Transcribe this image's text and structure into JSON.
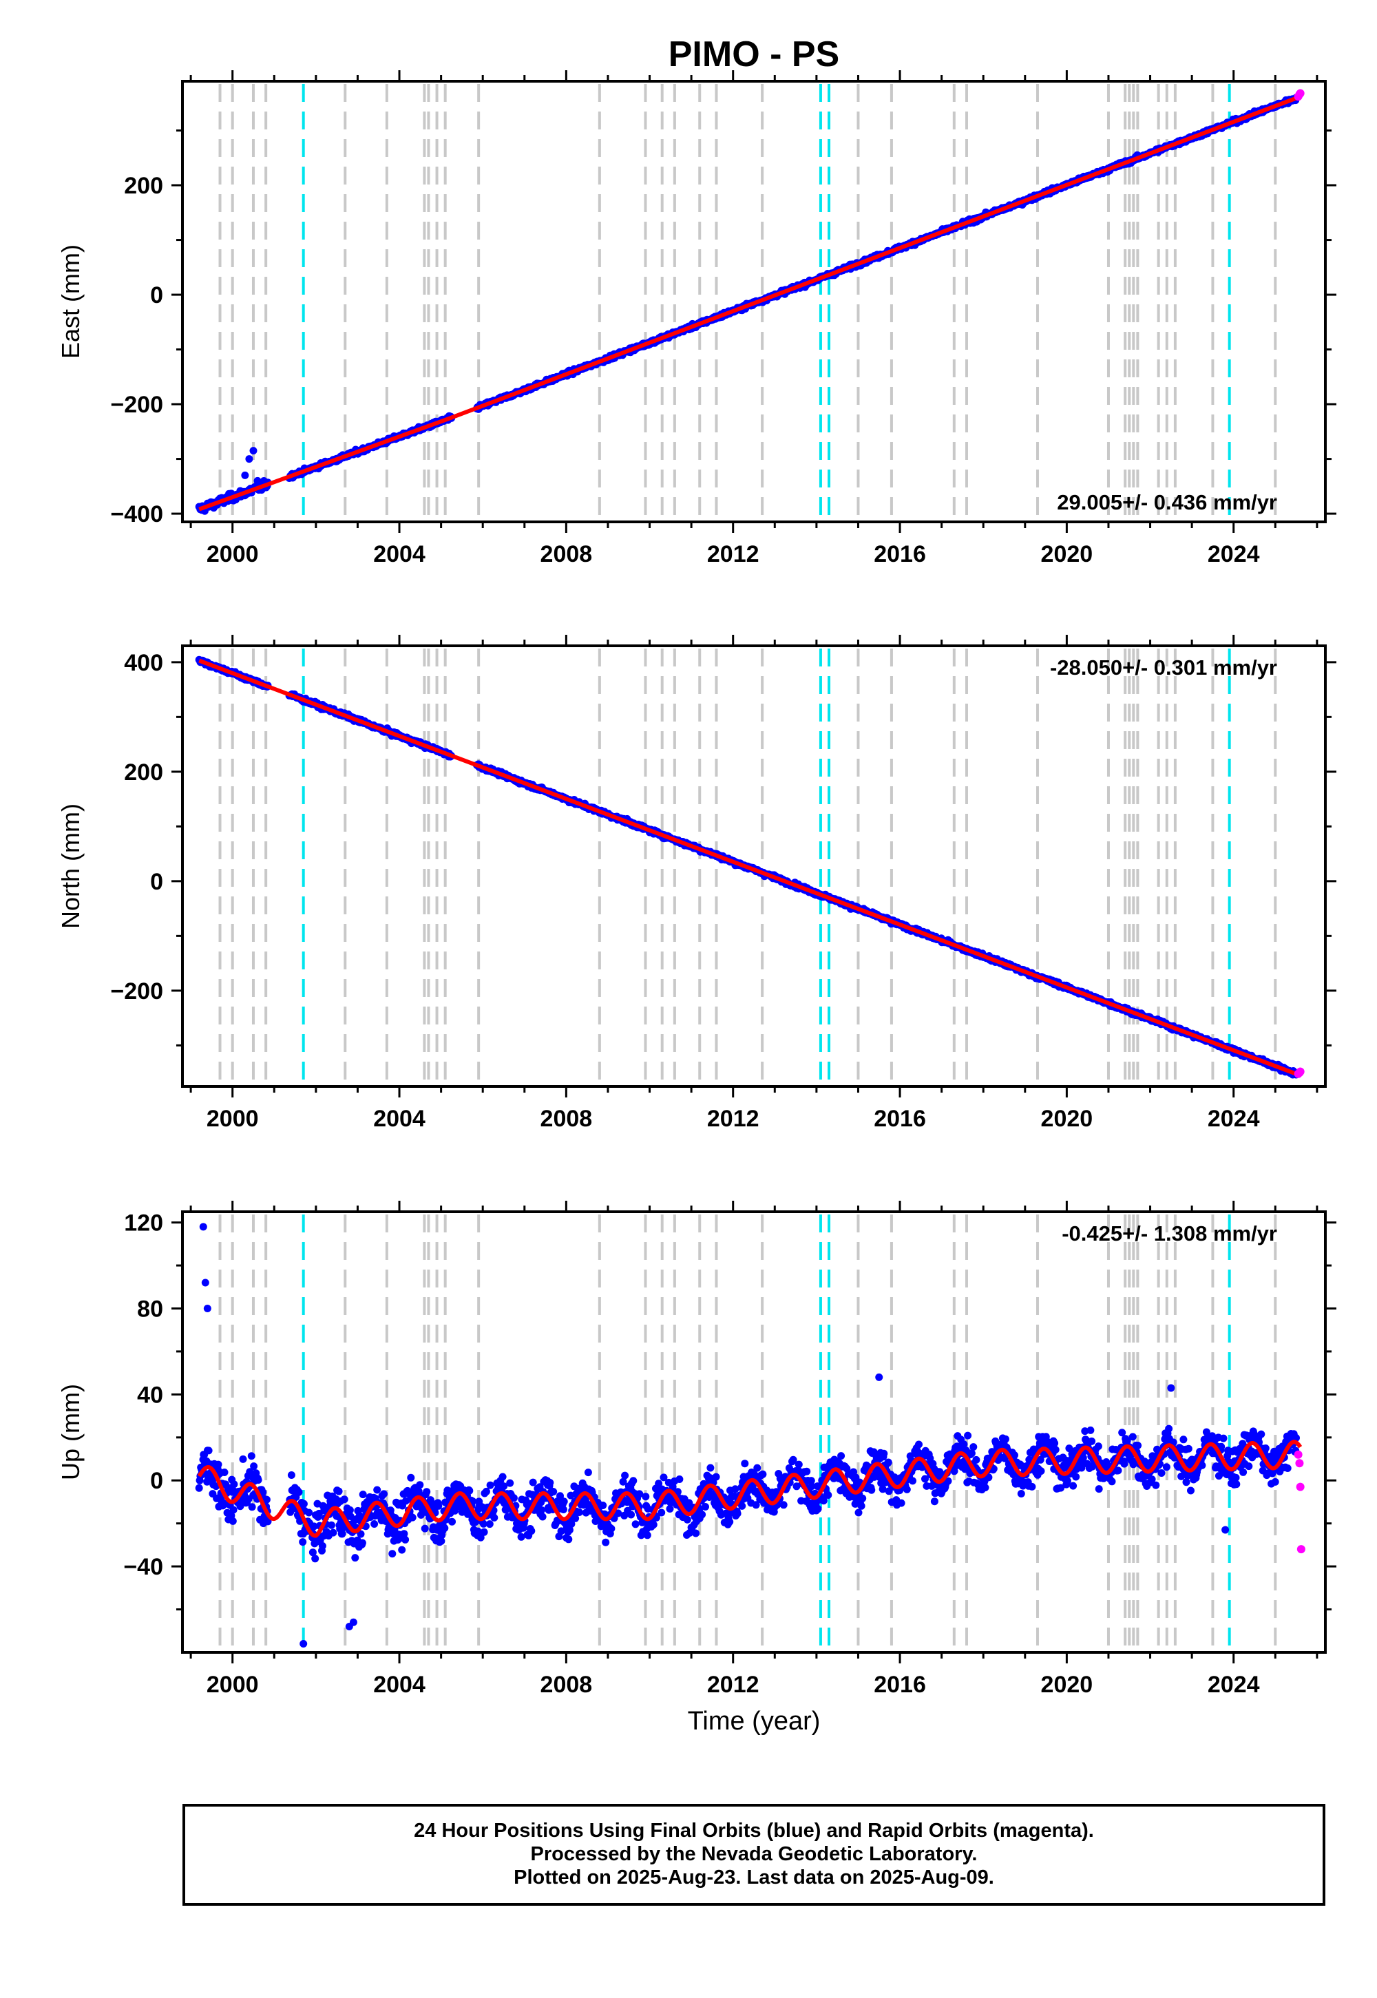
{
  "title": "PIMO - PS",
  "chart_data": [
    {
      "type": "scatter",
      "panel": "east",
      "ylabel": "East (mm)",
      "xlabel": "",
      "xlim": [
        1998.8,
        2026.2
      ],
      "ylim": [
        -415,
        390
      ],
      "xticks": [
        2000,
        2004,
        2008,
        2012,
        2016,
        2020,
        2024
      ],
      "yticks": [
        -400,
        -200,
        0,
        200
      ],
      "rate_label": "29.005+/- 0.436 mm/yr",
      "rate_position": "bottom-right",
      "model_line": {
        "x": [
          1999.2,
          2005.2,
          2025.6
        ],
        "y": [
          -392,
          -226,
          362
        ]
      },
      "final_orbits_range": {
        "x_start": 1999.2,
        "x_end": 2025.5,
        "y_start": -392,
        "y_end": 360
      },
      "rapid_orbits_points": {
        "x": [
          2025.55,
          2025.58,
          2025.6
        ],
        "y": [
          362,
          366,
          368
        ]
      },
      "outliers": {
        "x": [
          2000.3,
          2000.4,
          2000.5,
          2000.6,
          2001.6
        ],
        "y": [
          -330,
          -300,
          -285,
          -340,
          -325
        ]
      }
    },
    {
      "type": "scatter",
      "panel": "north",
      "ylabel": "North (mm)",
      "xlabel": "",
      "xlim": [
        1998.8,
        2026.2
      ],
      "ylim": [
        -375,
        430
      ],
      "xticks": [
        2000,
        2004,
        2008,
        2012,
        2016,
        2020,
        2024
      ],
      "yticks": [
        -200,
        0,
        200,
        400
      ],
      "rate_label": "-28.050+/- 0.301 mm/yr",
      "rate_position": "top-right",
      "model_line": {
        "x": [
          1999.2,
          2025.6
        ],
        "y": [
          403,
          -355
        ]
      },
      "rapid_orbits_points": {
        "x": [
          2025.55,
          2025.58,
          2025.6
        ],
        "y": [
          -352,
          -350,
          -348
        ]
      }
    },
    {
      "type": "scatter",
      "panel": "up",
      "ylabel": "Up (mm)",
      "xlabel": "Time (year)",
      "xlim": [
        1998.8,
        2026.2
      ],
      "ylim": [
        -80,
        125
      ],
      "xticks": [
        2000,
        2004,
        2008,
        2012,
        2016,
        2020,
        2024
      ],
      "yticks": [
        -40,
        0,
        40,
        80,
        120
      ],
      "rate_label": "-0.425+/- 1.308 mm/yr",
      "rate_position": "top-right",
      "model_mean": {
        "x": [
          1999.2,
          2002.0,
          2005.2,
          2010.0,
          2014.0,
          2018.0,
          2025.6
        ],
        "y": [
          2,
          -20,
          -12,
          -12,
          -2,
          8,
          12
        ]
      },
      "seasonal_amplitude": 6,
      "outliers": {
        "x": [
          1999.3,
          1999.35,
          1999.4,
          2001.7,
          2002.8,
          2002.9,
          2015.5,
          2022.5,
          2023.8
        ],
        "y": [
          118,
          92,
          80,
          -76,
          -68,
          -66,
          48,
          43,
          -23
        ]
      },
      "rapid_orbits_points": {
        "x": [
          2025.55,
          2025.58,
          2025.6,
          2025.62
        ],
        "y": [
          12,
          8,
          -3,
          -32
        ]
      }
    }
  ],
  "offset_lines": {
    "gray_years": [
      1999.7,
      2000.0,
      2000.5,
      2000.8,
      2002.7,
      2003.7,
      2004.6,
      2004.7,
      2004.9,
      2005.1,
      2005.9,
      2008.8,
      2009.9,
      2010.3,
      2010.6,
      2011.2,
      2011.6,
      2012.7,
      2015.0,
      2015.8,
      2017.3,
      2017.6,
      2019.3,
      2021.0,
      2021.4,
      2021.5,
      2021.6,
      2021.7,
      2022.2,
      2022.4,
      2022.6,
      2023.5,
      2025.0
    ],
    "cyan_years": [
      2001.7,
      2014.1,
      2014.3,
      2023.9
    ],
    "gray_color": "#c8c8c8",
    "cyan_color": "#00e5ee"
  },
  "colors": {
    "final_orbits": "#0000ff",
    "rapid_orbits": "#ff00ff",
    "model": "#ff0000",
    "frame": "#000000"
  },
  "footer": {
    "line1": "24 Hour Positions Using Final Orbits (blue) and Rapid Orbits (magenta).",
    "line2": "Processed by the Nevada Geodetic Laboratory.",
    "line3": "Plotted on 2025-Aug-23. Last data on 2025-Aug-09."
  }
}
